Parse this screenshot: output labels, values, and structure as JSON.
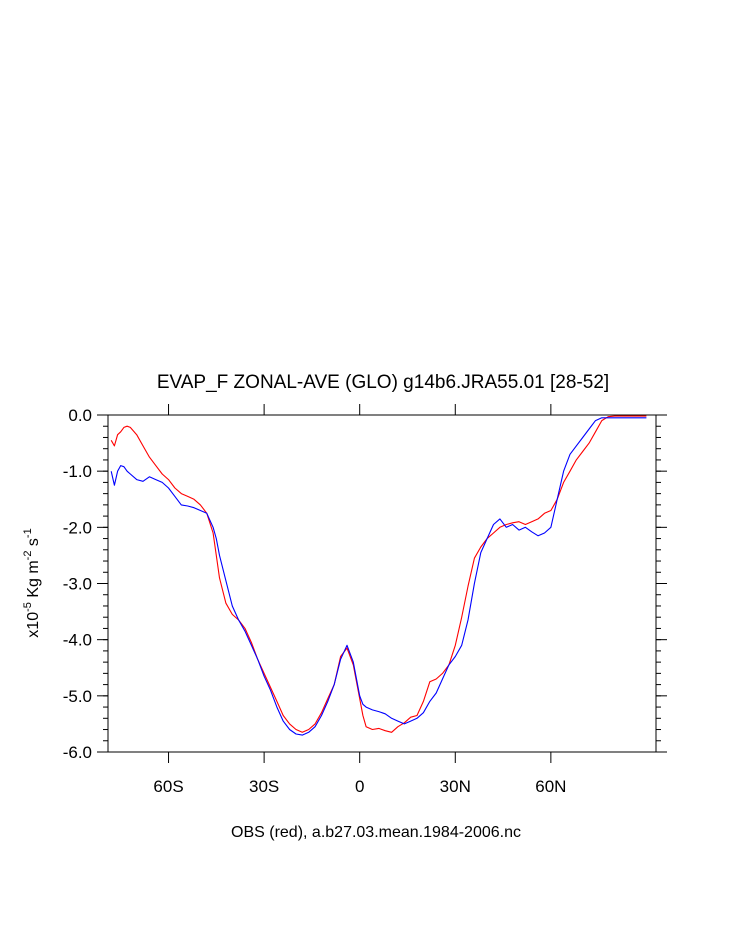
{
  "chart_data": {
    "type": "line",
    "title": "EVAP_F ZONAL-AVE (GLO) g14b6.JRA55.01 [28-52]",
    "footer": "OBS (red), a.b27.03.mean.1984-2006.nc",
    "ylabel": {
      "prefix": "x10",
      "exp1": "-5",
      "mid": " Kg m",
      "exp2": "-2",
      "mid2": " s",
      "exp3": "-1"
    },
    "xlim": [
      -79,
      93
    ],
    "ylim": [
      -6.0,
      0.0
    ],
    "grid": false,
    "x_ticks": [
      {
        "value": -60,
        "label": "60S"
      },
      {
        "value": -30,
        "label": "30S"
      },
      {
        "value": 0,
        "label": "0"
      },
      {
        "value": 30,
        "label": "30N"
      },
      {
        "value": 60,
        "label": "60N"
      }
    ],
    "y_ticks": [
      {
        "value": 0.0,
        "label": "0.0"
      },
      {
        "value": -1.0,
        "label": "-1.0"
      },
      {
        "value": -2.0,
        "label": "-2.0"
      },
      {
        "value": -3.0,
        "label": "-3.0"
      },
      {
        "value": -4.0,
        "label": "-4.0"
      },
      {
        "value": -5.0,
        "label": "-5.0"
      },
      {
        "value": -6.0,
        "label": "-6.0"
      }
    ],
    "series": [
      {
        "color": "#ff0000",
        "x": [
          -78,
          -77,
          -76,
          -75,
          -74,
          -73,
          -72,
          -70,
          -68,
          -66,
          -64,
          -62,
          -60,
          -58,
          -56,
          -54,
          -52,
          -50,
          -48,
          -46,
          -45,
          -44,
          -42,
          -40,
          -38,
          -36,
          -34,
          -32,
          -30,
          -28,
          -26,
          -24,
          -22,
          -20,
          -18,
          -16,
          -14,
          -12,
          -10,
          -8,
          -6,
          -4,
          -2,
          -1,
          0,
          1,
          2,
          4,
          6,
          8,
          10,
          12,
          14,
          16,
          18,
          20,
          22,
          24,
          26,
          28,
          30,
          32,
          34,
          36,
          38,
          40,
          42,
          44,
          46,
          48,
          50,
          52,
          54,
          56,
          58,
          60,
          62,
          64,
          66,
          68,
          70,
          72,
          74,
          76,
          78,
          80,
          82,
          84,
          86,
          88,
          90
        ],
        "y": [
          -0.45,
          -0.55,
          -0.35,
          -0.3,
          -0.22,
          -0.2,
          -0.22,
          -0.35,
          -0.55,
          -0.75,
          -0.9,
          -1.05,
          -1.15,
          -1.3,
          -1.4,
          -1.45,
          -1.5,
          -1.6,
          -1.75,
          -2.1,
          -2.5,
          -2.9,
          -3.35,
          -3.55,
          -3.65,
          -3.8,
          -4.05,
          -4.35,
          -4.6,
          -4.85,
          -5.1,
          -5.35,
          -5.5,
          -5.6,
          -5.65,
          -5.6,
          -5.5,
          -5.3,
          -5.05,
          -4.8,
          -4.3,
          -4.15,
          -4.45,
          -4.75,
          -5.05,
          -5.35,
          -5.55,
          -5.6,
          -5.58,
          -5.62,
          -5.65,
          -5.55,
          -5.48,
          -5.38,
          -5.35,
          -5.1,
          -4.75,
          -4.7,
          -4.6,
          -4.45,
          -4.1,
          -3.6,
          -3.05,
          -2.55,
          -2.35,
          -2.2,
          -2.1,
          -2.0,
          -1.95,
          -1.92,
          -1.9,
          -1.95,
          -1.9,
          -1.85,
          -1.75,
          -1.7,
          -1.5,
          -1.2,
          -1.0,
          -0.8,
          -0.65,
          -0.5,
          -0.3,
          -0.1,
          -0.03,
          -0.02,
          -0.02,
          -0.02,
          -0.02,
          -0.02,
          -0.02
        ]
      },
      {
        "color": "#0000ff",
        "x": [
          -78,
          -77,
          -76,
          -75,
          -74,
          -73,
          -72,
          -70,
          -68,
          -66,
          -64,
          -62,
          -60,
          -58,
          -56,
          -54,
          -52,
          -50,
          -48,
          -46,
          -45,
          -44,
          -42,
          -40,
          -38,
          -36,
          -34,
          -32,
          -30,
          -28,
          -26,
          -24,
          -22,
          -20,
          -18,
          -16,
          -14,
          -12,
          -10,
          -8,
          -6,
          -4,
          -2,
          -1,
          0,
          1,
          2,
          4,
          6,
          8,
          10,
          12,
          14,
          16,
          18,
          20,
          22,
          24,
          26,
          28,
          30,
          32,
          34,
          36,
          38,
          40,
          42,
          44,
          46,
          48,
          50,
          52,
          54,
          56,
          58,
          60,
          62,
          64,
          66,
          68,
          70,
          72,
          74,
          76,
          78,
          80,
          82,
          84,
          86,
          88,
          90
        ],
        "y": [
          -1.0,
          -1.25,
          -1.0,
          -0.9,
          -0.92,
          -1.0,
          -1.05,
          -1.15,
          -1.18,
          -1.1,
          -1.15,
          -1.2,
          -1.3,
          -1.45,
          -1.6,
          -1.62,
          -1.65,
          -1.7,
          -1.75,
          -2.0,
          -2.2,
          -2.5,
          -2.95,
          -3.4,
          -3.65,
          -3.85,
          -4.1,
          -4.35,
          -4.65,
          -4.9,
          -5.2,
          -5.45,
          -5.6,
          -5.68,
          -5.7,
          -5.65,
          -5.55,
          -5.35,
          -5.1,
          -4.8,
          -4.35,
          -4.1,
          -4.4,
          -4.7,
          -5.0,
          -5.15,
          -5.2,
          -5.25,
          -5.28,
          -5.32,
          -5.4,
          -5.45,
          -5.5,
          -5.45,
          -5.4,
          -5.3,
          -5.1,
          -4.95,
          -4.7,
          -4.45,
          -4.3,
          -4.1,
          -3.65,
          -3.0,
          -2.45,
          -2.2,
          -1.95,
          -1.85,
          -2.0,
          -1.95,
          -2.05,
          -2.0,
          -2.08,
          -2.15,
          -2.1,
          -2.0,
          -1.5,
          -1.0,
          -0.7,
          -0.55,
          -0.4,
          -0.25,
          -0.1,
          -0.05,
          -0.05,
          -0.05,
          -0.05,
          -0.05,
          -0.05,
          -0.05,
          -0.05
        ]
      }
    ]
  }
}
